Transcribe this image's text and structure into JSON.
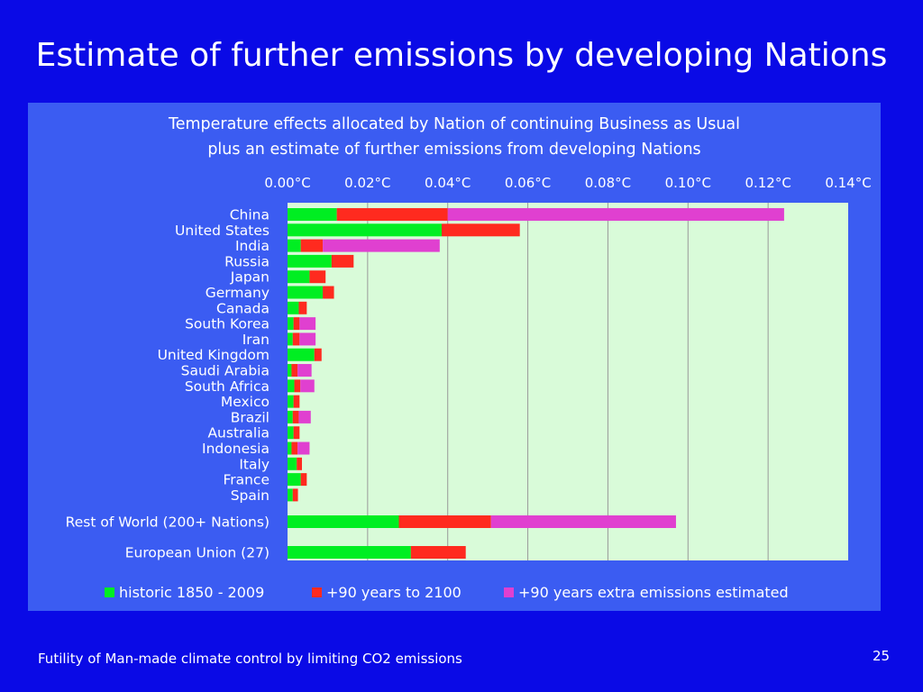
{
  "slide": {
    "title": "Estimate of further emissions by developing Nations",
    "footer": "Futility of Man-made climate control by limiting CO2 emissions",
    "page_number": "25"
  },
  "chart_data": {
    "type": "bar",
    "orientation": "horizontal",
    "stacked": true,
    "title_lines": [
      "Temperature effects allocated by Nation of continuing Business as Usual",
      "plus an estimate of further emissions from developing Nations"
    ],
    "x_tick_labels": [
      "0.00°C",
      "0.02°C",
      "0.04°C",
      "0.06°C",
      "0.08°C",
      "0.10°C",
      "0.12°C",
      "0.14°C"
    ],
    "xlim": [
      0,
      0.14
    ],
    "x_axis_position": "top",
    "grid": true,
    "plot_background": "#d9fbd9",
    "legend_position": "bottom",
    "categories": [
      "China",
      "United States",
      "India",
      "Russia",
      "Japan",
      "Germany",
      "Canada",
      "South Korea",
      "Iran",
      "United Kingdom",
      "Saudi Arabia",
      "South Africa",
      "Mexico",
      "Brazil",
      "Australia",
      "Indonesia",
      "Italy",
      "France",
      "Spain",
      "Rest of World  (200+ Nations)",
      "European Union (27)"
    ],
    "series": [
      {
        "name": "historic  1850 - 2009",
        "color": "#00ee22",
        "values": [
          0.0123,
          0.0385,
          0.0033,
          0.011,
          0.0055,
          0.0088,
          0.0028,
          0.0015,
          0.0013,
          0.0067,
          0.001,
          0.0017,
          0.0015,
          0.0013,
          0.0015,
          0.001,
          0.0023,
          0.0033,
          0.0013,
          0.0278,
          0.0308
        ]
      },
      {
        "name": "+90 years to 2100",
        "color": "#ff2a1f",
        "values": [
          0.0277,
          0.0195,
          0.0055,
          0.0055,
          0.004,
          0.0028,
          0.002,
          0.0015,
          0.0017,
          0.0018,
          0.0015,
          0.0015,
          0.0015,
          0.0015,
          0.0015,
          0.0015,
          0.0013,
          0.0015,
          0.0013,
          0.023,
          0.0137
        ]
      },
      {
        "name": "+90 years extra emissions estimated",
        "color": "#e040d0",
        "values": [
          0.084,
          0,
          0.0292,
          0,
          0,
          0,
          0,
          0.004,
          0.004,
          0,
          0.0035,
          0.0035,
          0,
          0.003,
          0,
          0.003,
          0,
          0,
          0,
          0.0462,
          0
        ]
      }
    ]
  }
}
